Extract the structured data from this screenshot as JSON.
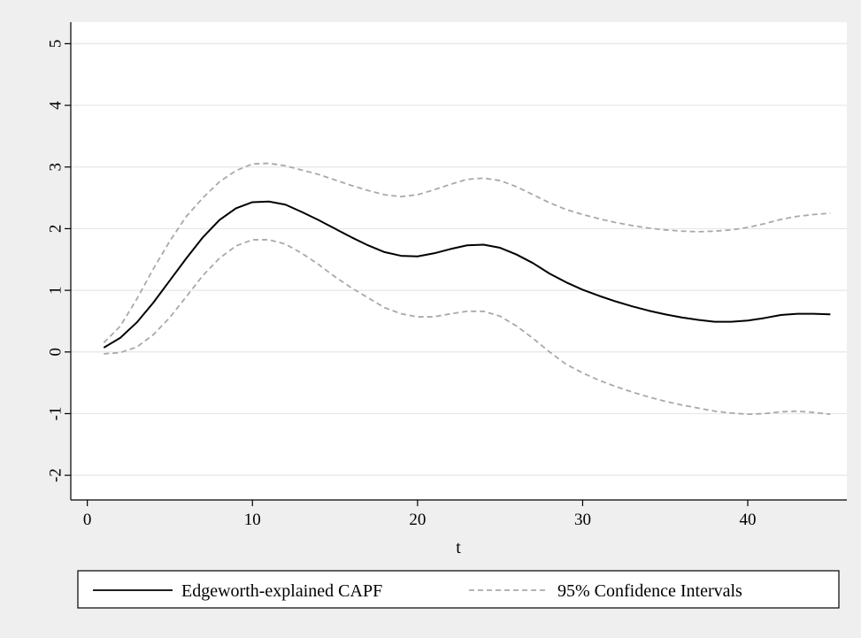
{
  "chart_data": {
    "type": "line",
    "xlabel": "t",
    "ylabel": "",
    "xlim": [
      -1,
      46
    ],
    "ylim": [
      -2.4,
      5.35
    ],
    "x_ticks": [
      0,
      10,
      20,
      30,
      40
    ],
    "y_ticks": [
      -2,
      -1,
      0,
      1,
      2,
      3,
      4,
      5
    ],
    "grid": "horizontal",
    "legend_position": "bottom",
    "series": [
      {
        "name": "Edgeworth-explained CAPF",
        "style": "solid",
        "color": "#000000",
        "x": [
          1,
          2,
          3,
          4,
          5,
          6,
          7,
          8,
          9,
          10,
          11,
          12,
          13,
          14,
          15,
          16,
          17,
          18,
          19,
          20,
          21,
          22,
          23,
          24,
          25,
          26,
          27,
          28,
          29,
          30,
          31,
          32,
          33,
          34,
          35,
          36,
          37,
          38,
          39,
          40,
          41,
          42,
          43,
          44,
          45
        ],
        "y": [
          0.07,
          0.23,
          0.48,
          0.8,
          1.16,
          1.52,
          1.86,
          2.14,
          2.33,
          2.43,
          2.44,
          2.39,
          2.27,
          2.14,
          2.0,
          1.86,
          1.73,
          1.62,
          1.56,
          1.55,
          1.6,
          1.67,
          1.73,
          1.74,
          1.69,
          1.58,
          1.44,
          1.27,
          1.13,
          1.01,
          0.91,
          0.82,
          0.74,
          0.67,
          0.61,
          0.56,
          0.52,
          0.49,
          0.49,
          0.51,
          0.55,
          0.6,
          0.62,
          0.62,
          0.61
        ]
      },
      {
        "name": "95% Confidence Intervals",
        "style": "dashed",
        "color": "#a9a9a9",
        "x": [
          1,
          2,
          3,
          4,
          5,
          6,
          7,
          8,
          9,
          10,
          11,
          12,
          13,
          14,
          15,
          16,
          17,
          18,
          19,
          20,
          21,
          22,
          23,
          24,
          25,
          26,
          27,
          28,
          29,
          30,
          31,
          32,
          33,
          34,
          35,
          36,
          37,
          38,
          39,
          40,
          41,
          42,
          43,
          44,
          45
        ],
        "y": [
          0.15,
          0.42,
          0.86,
          1.35,
          1.8,
          2.2,
          2.5,
          2.76,
          2.94,
          3.05,
          3.06,
          3.02,
          2.95,
          2.88,
          2.79,
          2.7,
          2.62,
          2.55,
          2.52,
          2.55,
          2.63,
          2.72,
          2.8,
          2.82,
          2.78,
          2.68,
          2.55,
          2.42,
          2.31,
          2.23,
          2.16,
          2.1,
          2.05,
          2.01,
          1.98,
          1.96,
          1.95,
          1.96,
          1.98,
          2.02,
          2.08,
          2.15,
          2.2,
          2.23,
          2.25
        ]
      },
      {
        "name": "",
        "style": "dashed",
        "color": "#a9a9a9",
        "x": [
          1,
          2,
          3,
          4,
          5,
          6,
          7,
          8,
          9,
          10,
          11,
          12,
          13,
          14,
          15,
          16,
          17,
          18,
          19,
          20,
          21,
          22,
          23,
          24,
          25,
          26,
          27,
          28,
          29,
          30,
          31,
          32,
          33,
          34,
          35,
          36,
          37,
          38,
          39,
          40,
          41,
          42,
          43,
          44,
          45
        ],
        "y": [
          -0.03,
          -0.01,
          0.08,
          0.28,
          0.56,
          0.9,
          1.24,
          1.52,
          1.72,
          1.82,
          1.82,
          1.75,
          1.6,
          1.42,
          1.22,
          1.04,
          0.88,
          0.72,
          0.62,
          0.57,
          0.57,
          0.62,
          0.66,
          0.66,
          0.58,
          0.42,
          0.22,
          0.0,
          -0.2,
          -0.34,
          -0.46,
          -0.56,
          -0.65,
          -0.73,
          -0.8,
          -0.86,
          -0.91,
          -0.96,
          -0.99,
          -1.01,
          -1.0,
          -0.97,
          -0.96,
          -0.98,
          -1.01
        ]
      }
    ],
    "legend": [
      {
        "label": "Edgeworth-explained CAPF",
        "style": "solid",
        "color": "#000000"
      },
      {
        "label": "95% Confidence Intervals",
        "style": "dashed",
        "color": "#a9a9a9"
      }
    ]
  }
}
